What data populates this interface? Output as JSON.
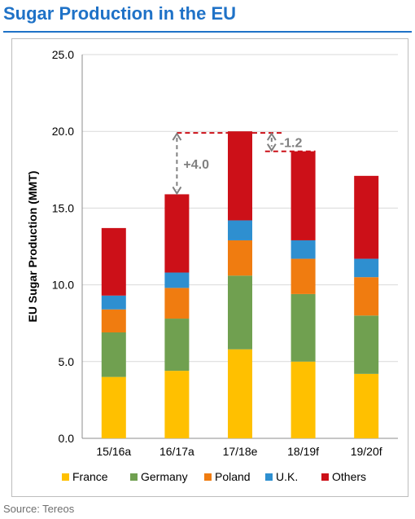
{
  "header": {
    "title": "Sugar Production in the EU"
  },
  "source": "Source: Tereos",
  "chart_data": {
    "type": "bar",
    "stacked": true,
    "title": "",
    "xlabel": "",
    "ylabel": "EU Sugar Production (MMT)",
    "ylim": [
      0,
      25
    ],
    "yticks": [
      "0.0",
      "5.0",
      "10.0",
      "15.0",
      "20.0",
      "25.0"
    ],
    "grid": true,
    "legend_position": "bottom",
    "categories": [
      "15/16a",
      "16/17a",
      "17/18e",
      "18/19f",
      "19/20f"
    ],
    "series": [
      {
        "name": "France",
        "color": "#ffc000",
        "values": [
          4.0,
          4.4,
          5.8,
          5.0,
          4.2
        ]
      },
      {
        "name": "Germany",
        "color": "#70a050",
        "values": [
          2.9,
          3.4,
          4.8,
          4.4,
          3.8
        ]
      },
      {
        "name": "Poland",
        "color": "#f07c10",
        "values": [
          1.5,
          2.0,
          2.3,
          2.3,
          2.5
        ]
      },
      {
        "name": "U.K.",
        "color": "#2e8fd0",
        "values": [
          0.9,
          1.0,
          1.3,
          1.2,
          1.2
        ]
      },
      {
        "name": "Others",
        "color": "#cc1018",
        "values": [
          4.4,
          5.1,
          5.8,
          5.8,
          5.4
        ]
      }
    ],
    "annotations": [
      {
        "text": "+4.0",
        "from_category": "16/17a",
        "to_category": "17/18e",
        "from_value": 15.9,
        "to_value": 19.9
      },
      {
        "text": "-1.2",
        "from_category": "17/18e",
        "to_category": "18/19f",
        "from_value": 19.9,
        "to_value": 18.7
      }
    ]
  }
}
